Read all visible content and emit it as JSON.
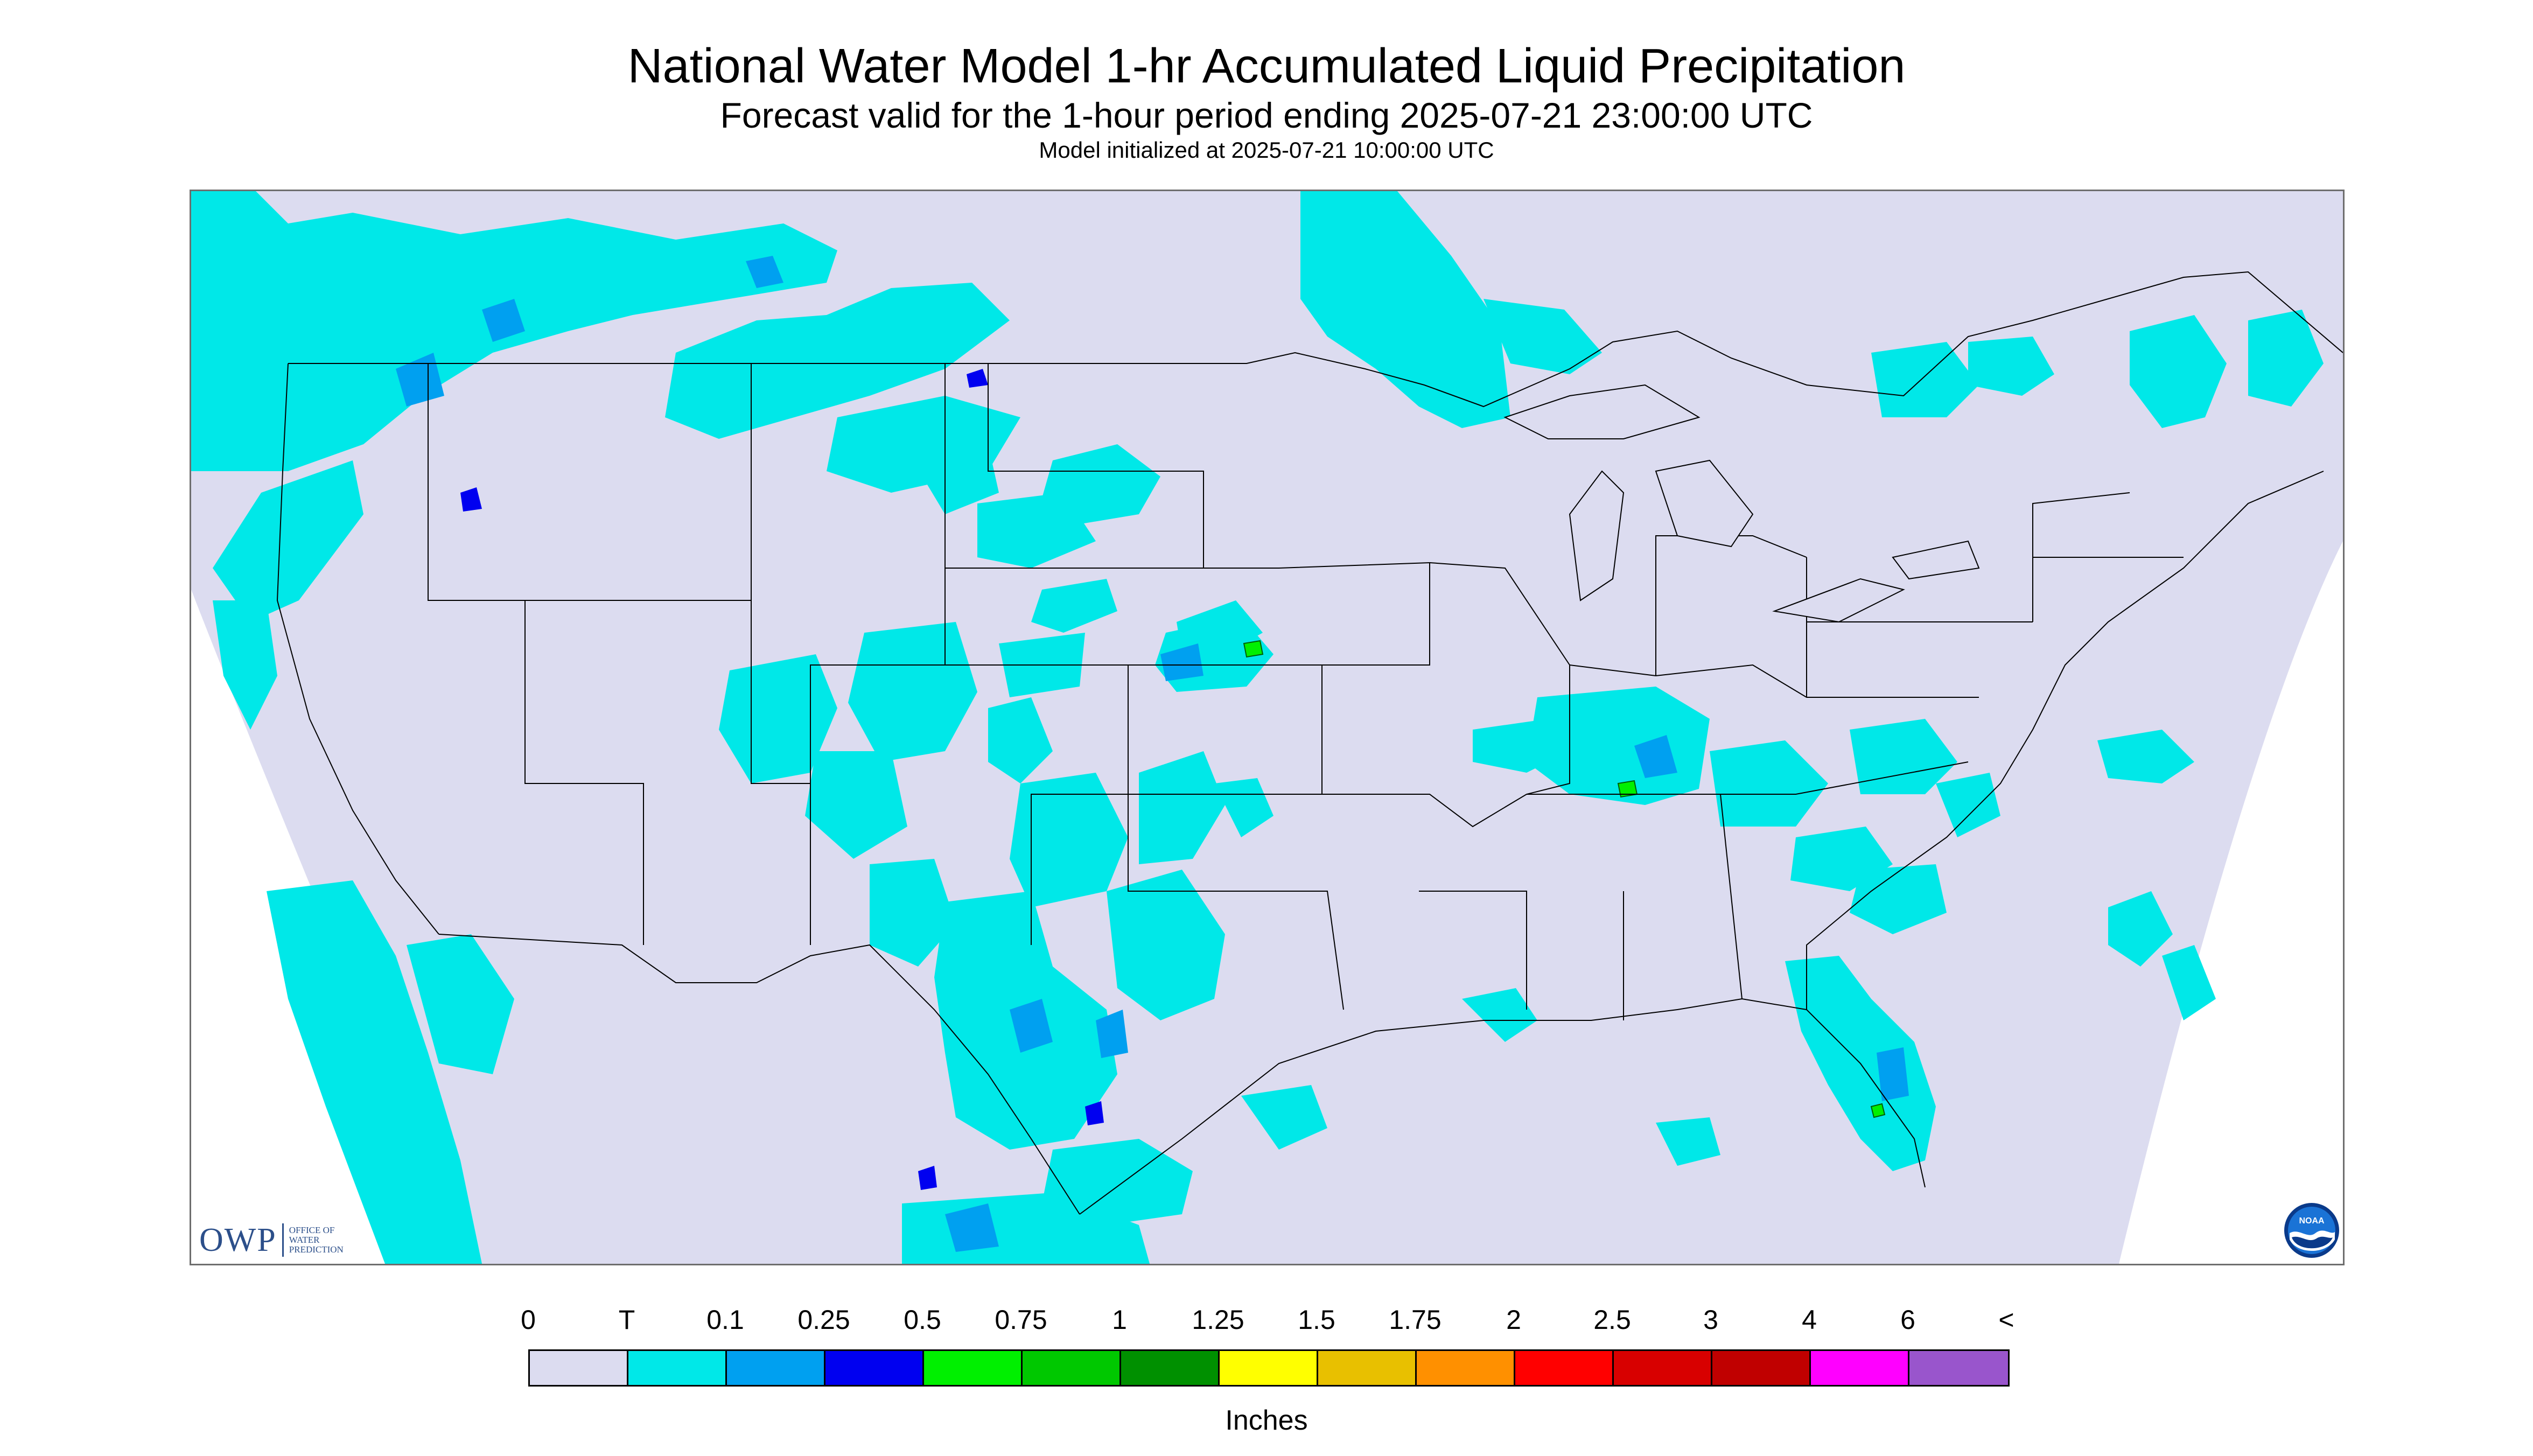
{
  "header": {
    "title": "National Water Model 1-hr Accumulated Liquid Precipitation",
    "subtitle": "Forecast valid for the 1-hour period ending 2025-07-21 23:00:00 UTC",
    "init": "Model initialized at 2025-07-21 10:00:00 UTC"
  },
  "logos": {
    "owp_mark": "OWP",
    "owp_text": [
      "OFFICE OF",
      "WATER",
      "PREDICTION"
    ],
    "noaa": "NOAA"
  },
  "legend": {
    "ticks": [
      "0",
      "T",
      "0.1",
      "0.25",
      "0.5",
      "0.75",
      "1",
      "1.25",
      "1.5",
      "1.75",
      "2",
      "2.5",
      "3",
      "4",
      "6",
      "<"
    ],
    "colors": [
      "#dcdcf0",
      "#00e8e8",
      "#00a0f0",
      "#0000f0",
      "#00f000",
      "#00c800",
      "#009000",
      "#ffff00",
      "#e8c000",
      "#ff9000",
      "#ff0000",
      "#d80000",
      "#c00000",
      "#ff00ff",
      "#9955cc"
    ],
    "units": "Inches"
  },
  "map": {
    "domain_color": "#dcdcf0",
    "precip_color_light": "#00e8e8",
    "precip_color_mid": "#00a0f0",
    "precip_color_heavy": "#0000f0",
    "precip_color_green": "#00f000",
    "boundary_color": "#000000"
  }
}
